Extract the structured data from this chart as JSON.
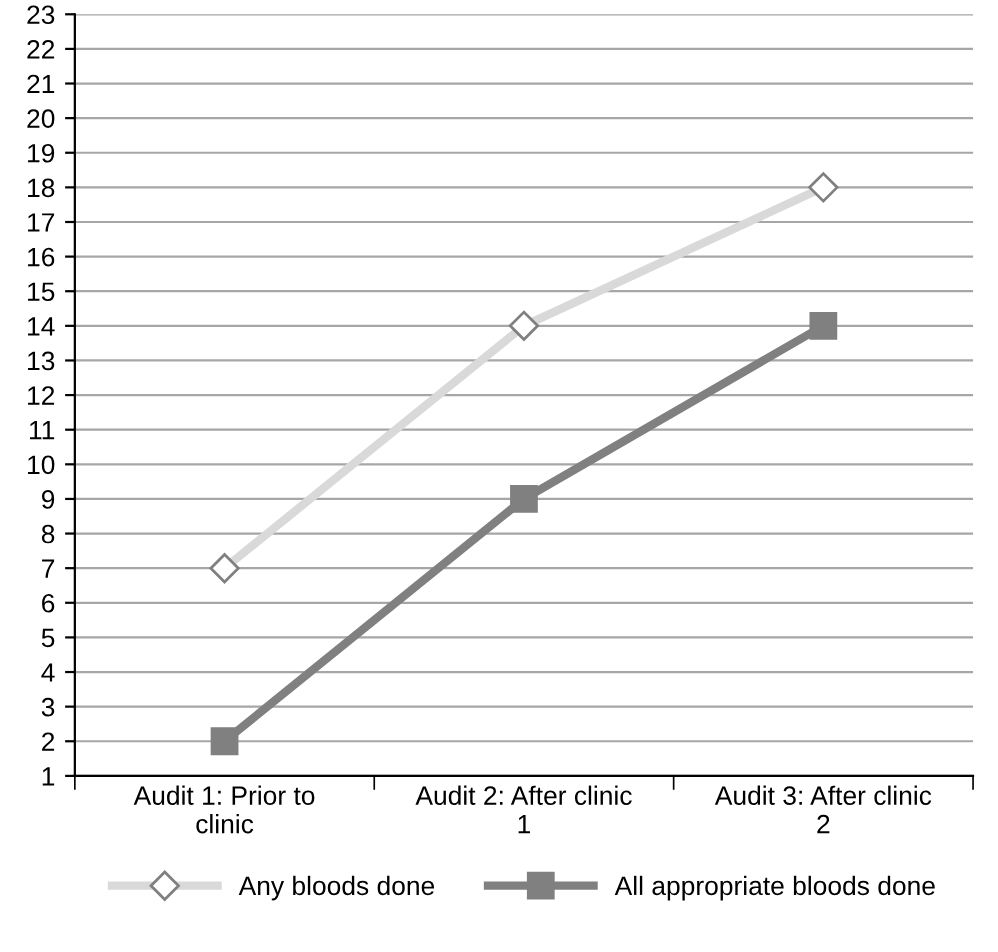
{
  "chart_data": {
    "type": "line",
    "categories": [
      "Audit 1: Prior to\nclinic",
      "Audit 2: After clinic\n1",
      "Audit 3: After clinic\n2"
    ],
    "series": [
      {
        "name": "Any bloods done",
        "color": "#d9d9d9",
        "marker": "diamond",
        "values": [
          7,
          14,
          18
        ]
      },
      {
        "name": "All appropriate bloods done",
        "color": "#808080",
        "marker": "square",
        "values": [
          2,
          9,
          14
        ]
      }
    ],
    "ylim": [
      1,
      23
    ],
    "yticks": [
      1,
      2,
      3,
      4,
      5,
      6,
      7,
      8,
      9,
      10,
      11,
      12,
      13,
      14,
      15,
      16,
      17,
      18,
      19,
      20,
      21,
      22,
      23
    ],
    "grid": "y",
    "legend": "bottom",
    "line_style": "solid"
  }
}
